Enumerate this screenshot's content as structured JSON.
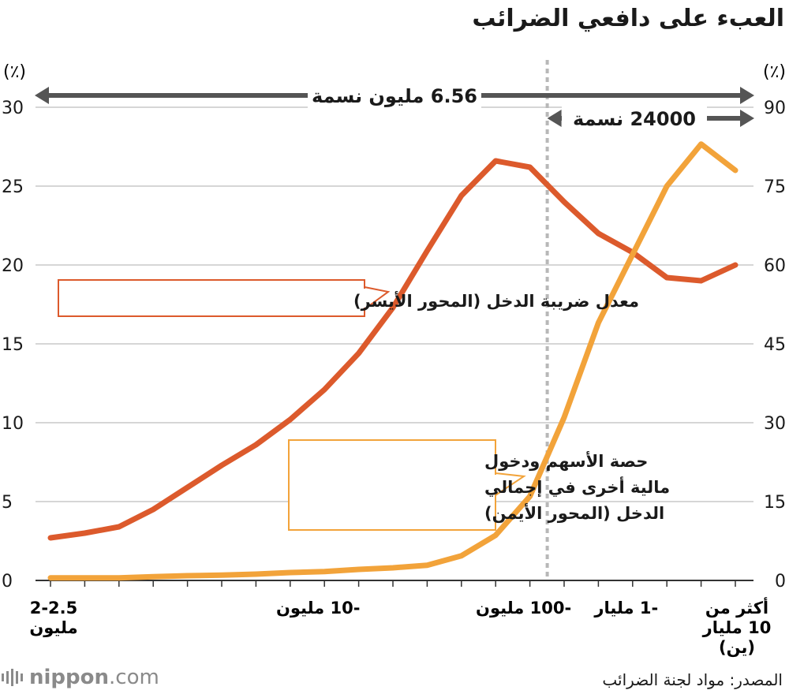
{
  "title": "العبء على دافعي الضرائب",
  "source": "المصدر: مواد لجنة الضرائب",
  "logo": {
    "text_bold": "nippon",
    "text_light": ".com"
  },
  "colors": {
    "tax_rate": "#dc5a2c",
    "dividend_share": "#f2a33a",
    "arrows": "#555555",
    "grid": "#c8c8c8",
    "callout_border_1": "#dc5a2c",
    "callout_border_2": "#f2a33a"
  },
  "chart_data": {
    "type": "line",
    "x_tick_labels": [
      {
        "index": 0,
        "lines": [
          "2-2.5",
          "مليون"
        ]
      },
      {
        "index": 8,
        "lines": [
          "-10 مليون"
        ]
      },
      {
        "index": 14,
        "lines": [
          "-100 مليون"
        ]
      },
      {
        "index": 17,
        "lines": [
          "-1 مليار"
        ]
      },
      {
        "index": 20,
        "lines": [
          "أكثر من",
          "10 مليار",
          "(ين)"
        ]
      }
    ],
    "left_axis": {
      "unit": "(٪)",
      "min": 0,
      "max": 30,
      "ticks": [
        0,
        5,
        10,
        15,
        20,
        25,
        30
      ]
    },
    "right_axis": {
      "unit": "(٪)",
      "min": 0,
      "max": 90,
      "ticks": [
        0,
        15,
        30,
        45,
        60,
        75,
        90
      ]
    },
    "grid": true,
    "series": [
      {
        "name": "معدل ضريبة الدخل (المحور الأيسر)",
        "axis": "left",
        "color": "#dc5a2c",
        "values": [
          2.7,
          3.0,
          3.4,
          4.5,
          5.9,
          7.3,
          8.6,
          10.2,
          12.1,
          14.4,
          17.3,
          20.9,
          24.4,
          26.6,
          26.2,
          24.0,
          22.0,
          20.8,
          19.2,
          19.0,
          20.0
        ]
      },
      {
        "name": "حصة الأسهم ودخول مالية أخرى في إجمالي الدخل (المحور الأيمن)",
        "axis": "right",
        "color": "#f2a33a",
        "values": [
          0.5,
          0.5,
          0.5,
          0.7,
          0.9,
          1.0,
          1.2,
          1.5,
          1.7,
          2.1,
          2.4,
          2.9,
          4.7,
          8.6,
          16.0,
          31.0,
          49.0,
          62.0,
          75.0,
          83.0,
          78.0
        ]
      }
    ],
    "callouts": [
      {
        "series": 0,
        "lines": [
          "معدل ضريبة الدخل (المحور الأيسر)"
        ]
      },
      {
        "series": 1,
        "lines": [
          "حصة الأسهم ودخول مالية أخرى في إجمالي الدخل (المحور الأيمن)"
        ],
        "display_lines": [
          "حصة الأسهم ودخول",
          "مالية أخرى في إجمالي",
          "الدخل (المحور الأيمن)"
        ]
      }
    ],
    "spans": [
      {
        "label": "6.56 مليون نسمة",
        "from_index": 0,
        "to_index": 20
      },
      {
        "label": "24000 نسمة",
        "from_index": 14,
        "to_index": 20
      }
    ],
    "divider_index": 14
  }
}
